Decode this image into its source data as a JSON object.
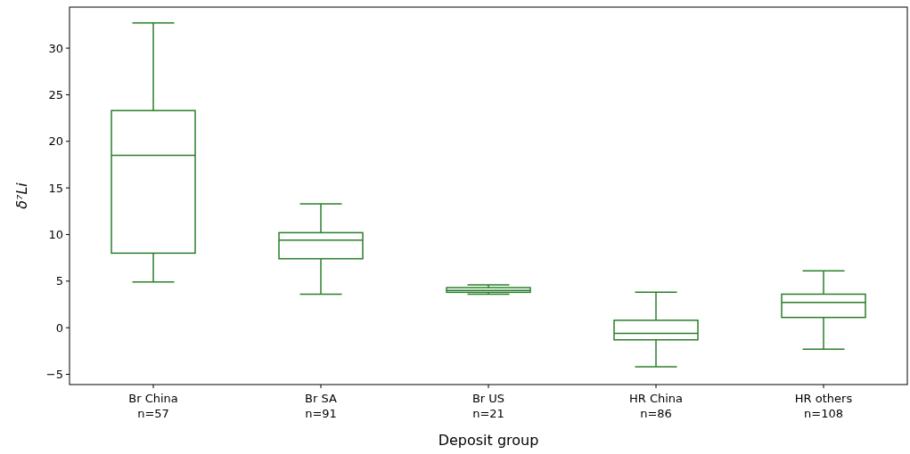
{
  "chart_data": {
    "type": "box",
    "xlabel": "Deposit group",
    "ylabel": "δ⁷Li",
    "categories": [
      "Br China\nn=57",
      "Br SA\nn=91",
      "Br US\nn=21",
      "HR China\nn=86",
      "HR others\nn=108"
    ],
    "color": "#2a7f2a",
    "boxes": [
      {
        "low": 4.9,
        "q1": 8.0,
        "median": 18.5,
        "q3": 23.3,
        "high": 32.7
      },
      {
        "low": 3.6,
        "q1": 7.4,
        "median": 9.4,
        "q3": 10.2,
        "high": 13.3
      },
      {
        "low": 3.6,
        "q1": 3.8,
        "median": 4.0,
        "q3": 4.3,
        "high": 4.6
      },
      {
        "low": -4.2,
        "q1": -1.3,
        "median": -0.6,
        "q3": 0.8,
        "high": 3.8
      },
      {
        "low": -2.3,
        "q1": 1.1,
        "median": 2.7,
        "q3": 3.6,
        "high": 6.1
      }
    ],
    "ylim": [
      -6.1,
      34.4
    ],
    "yticks": [
      -5,
      0,
      5,
      10,
      15,
      20,
      25,
      30
    ]
  }
}
